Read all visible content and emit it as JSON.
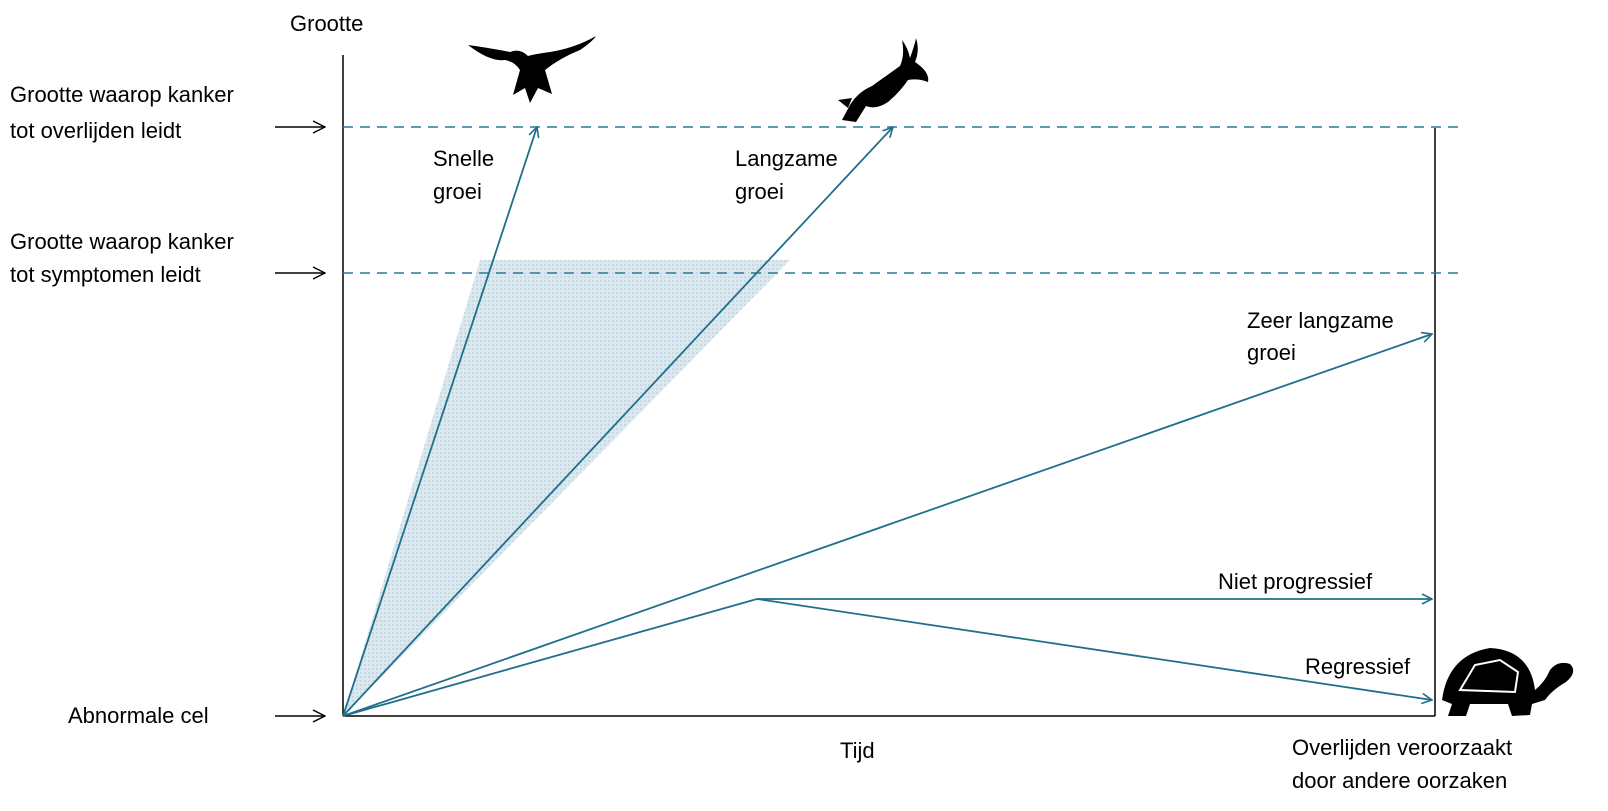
{
  "y_axis_label": "Grootte",
  "x_axis_label": "Tijd",
  "levels": {
    "death": [
      "Grootte waarop kanker",
      "tot overlijden leidt"
    ],
    "symptoms": [
      "Grootte waarop kanker",
      "tot symptomen leidt"
    ],
    "start": "Abnormale cel"
  },
  "paths": {
    "fast": [
      "Snelle",
      "groei"
    ],
    "slow": [
      "Langzame",
      "groei"
    ],
    "very_slow": [
      "Zeer langzame",
      "groei"
    ],
    "non_progressive": "Niet progressief",
    "regressive": "Regressief"
  },
  "other_death": [
    "Overlijden veroorzaakt",
    "door andere oorzaken"
  ]
}
